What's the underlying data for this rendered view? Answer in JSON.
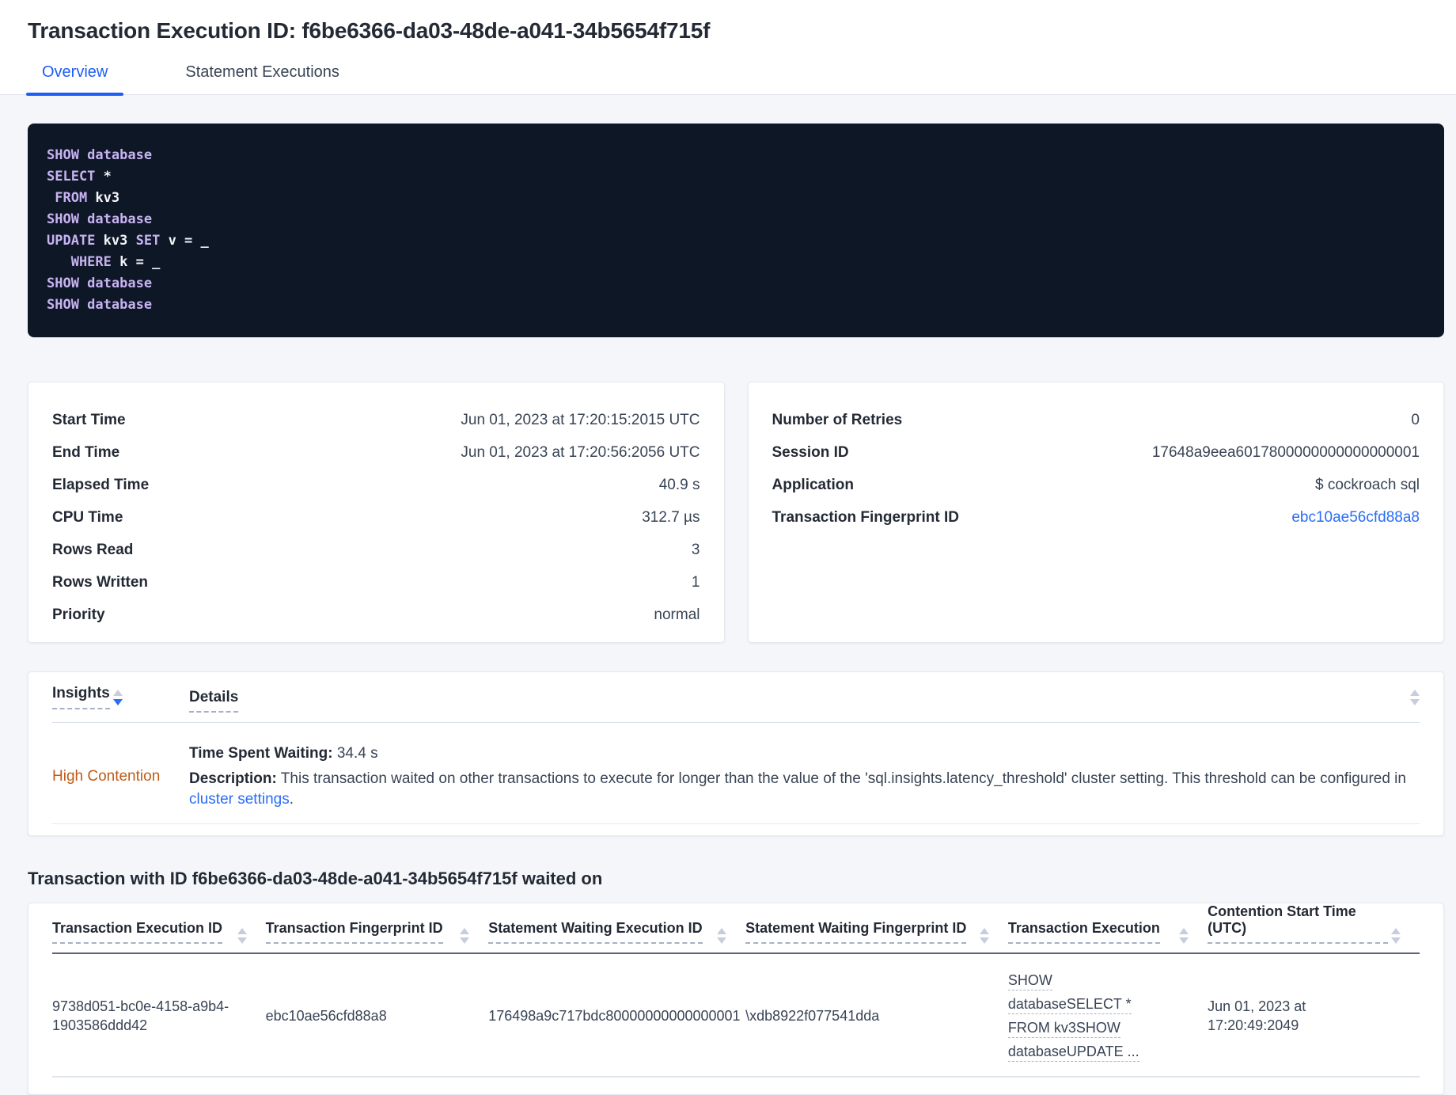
{
  "page": {
    "title": "Transaction Execution ID: f6be6366-da03-48de-a041-34b5654f715f"
  },
  "tabs": [
    {
      "label": "Overview",
      "active": true
    },
    {
      "label": "Statement Executions",
      "active": false
    }
  ],
  "sql": {
    "lines": [
      [
        {
          "t": "SHOW database",
          "c": "kw"
        }
      ],
      [
        {
          "t": "SELECT",
          "c": "kw"
        },
        {
          "t": " *",
          "c": "id"
        }
      ],
      [
        {
          "t": " FROM",
          "c": "kw"
        },
        {
          "t": " kv3",
          "c": "id"
        }
      ],
      [
        {
          "t": "SHOW database",
          "c": "kw"
        }
      ],
      [
        {
          "t": "UPDATE",
          "c": "kw"
        },
        {
          "t": " kv3 ",
          "c": "id"
        },
        {
          "t": "SET",
          "c": "kw"
        },
        {
          "t": " v = _",
          "c": "id"
        }
      ],
      [
        {
          "t": "   WHERE",
          "c": "kw"
        },
        {
          "t": " k = _",
          "c": "id"
        }
      ],
      [
        {
          "t": "SHOW database",
          "c": "kw"
        }
      ],
      [
        {
          "t": "SHOW database",
          "c": "kw"
        }
      ]
    ]
  },
  "summary_left": {
    "rows": [
      {
        "label": "Start Time",
        "value": "Jun 01, 2023 at 17:20:15:2015 UTC"
      },
      {
        "label": "End Time",
        "value": "Jun 01, 2023 at 17:20:56:2056 UTC"
      },
      {
        "label": "Elapsed Time",
        "value": "40.9 s"
      },
      {
        "label": "CPU Time",
        "value": "312.7 µs"
      },
      {
        "label": "Rows Read",
        "value": "3"
      },
      {
        "label": "Rows Written",
        "value": "1"
      },
      {
        "label": "Priority",
        "value": "normal"
      }
    ]
  },
  "summary_right": {
    "rows": [
      {
        "label": "Number of Retries",
        "value": "0"
      },
      {
        "label": "Session ID",
        "value": "17648a9eea6017800000000000000001"
      },
      {
        "label": "Application",
        "value": "$ cockroach sql"
      },
      {
        "label": "Transaction Fingerprint ID",
        "value": "ebc10ae56cfd88a8",
        "link": true
      }
    ]
  },
  "insights": {
    "columns": {
      "insights": "Insights",
      "details": "Details"
    },
    "row": {
      "insight": "High Contention",
      "waiting_label": "Time Spent Waiting:",
      "waiting_value": " 34.4 s",
      "description_label": "Description:",
      "description_text": " This transaction waited on other transactions to execute for longer than the value of the 'sql.insights.latency_threshold' cluster setting. This threshold can be configured in ",
      "description_link": "cluster settings",
      "description_suffix": "."
    }
  },
  "waited_on": {
    "heading": "Transaction with ID f6be6366-da03-48de-a041-34b5654f715f waited on",
    "columns": [
      "Transaction Execution ID",
      "Transaction Fingerprint ID",
      "Statement Waiting Execution ID",
      "Statement Waiting Fingerprint ID",
      "Transaction Execution",
      "Contention Start Time (UTC)"
    ],
    "rows": [
      {
        "cells": [
          "9738d051-bc0e-4158-a9b4-1903586ddd42",
          "ebc10ae56cfd88a8",
          "176498a9c717bdc80000000000000001",
          "\\xdb8922f077541dda",
          "SHOW databaseSELECT * FROM kv3SHOW databaseUPDATE ...",
          "Jun 01, 2023 at 17:20:49:2049"
        ]
      }
    ]
  },
  "colors": {
    "accent_blue": "#1e5ef5",
    "link_blue": "#2a6df4",
    "insight_orange": "#bf5b17",
    "sql_keyword": "#c8b3f2",
    "sql_background": "#0e1726"
  }
}
